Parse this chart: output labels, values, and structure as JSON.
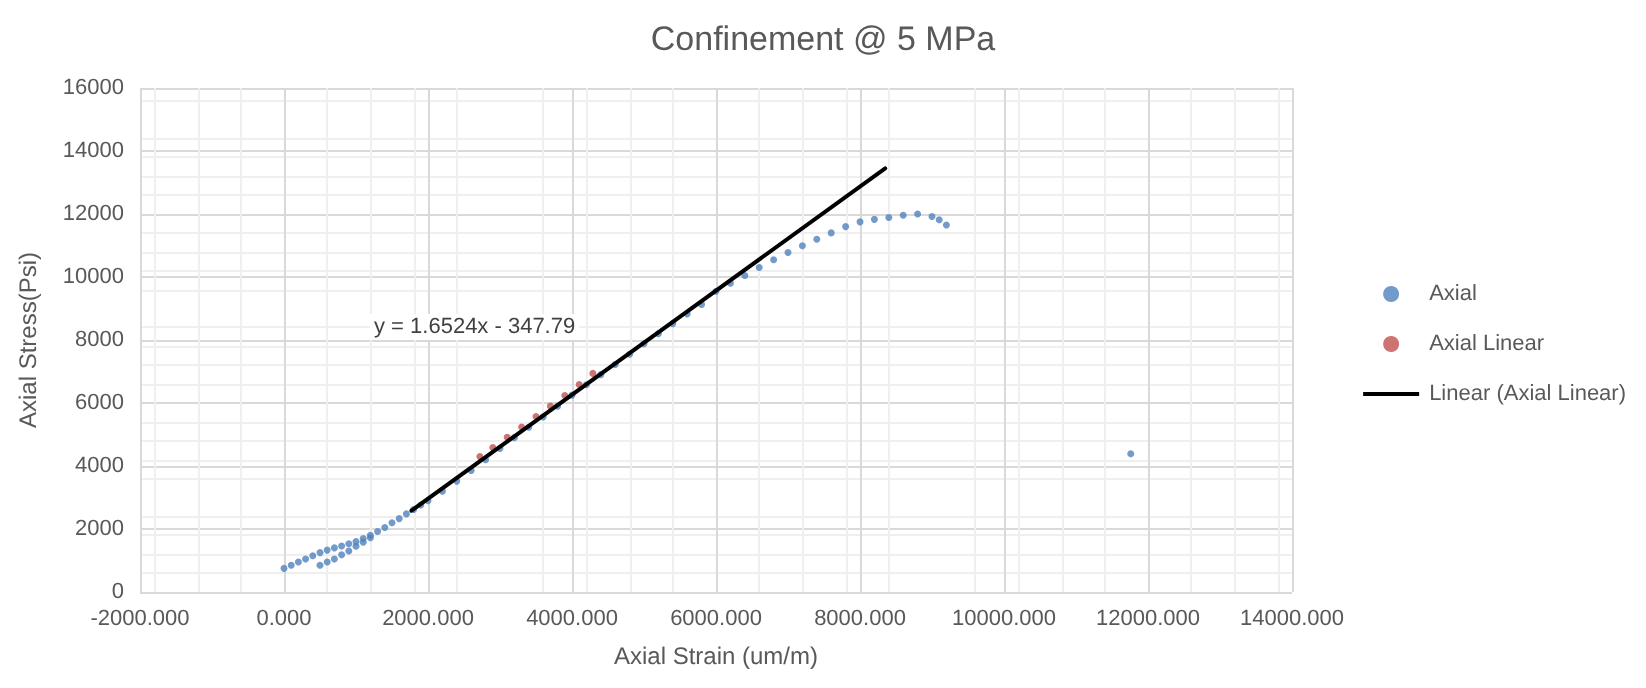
{
  "chart_data": {
    "type": "scatter",
    "title": "Confinement @ 5 MPa",
    "xlabel": "Axial Strain (um/m)",
    "ylabel": "Axial Stress(Psi)",
    "annotations": [
      "y = 1.6524x - 347.79"
    ],
    "series": [
      {
        "name": "Axial",
        "color": "#4f81bd",
        "marker": "circle",
        "x": [
          500,
          600,
          700,
          800,
          900,
          1000,
          1100,
          1200,
          0,
          100,
          200,
          300,
          400,
          500,
          600,
          700,
          800,
          900,
          1000,
          1100,
          1200,
          1300,
          1400,
          1500,
          1600,
          1700,
          1800,
          1900,
          2000,
          2200,
          2400,
          2600,
          2800,
          3000,
          3200,
          3400,
          3600,
          3800,
          4000,
          4200,
          4400,
          4600,
          4800,
          5000,
          5200,
          5400,
          5600,
          5800,
          6000,
          6200,
          6400,
          6600,
          6800,
          7000,
          7200,
          7400,
          7600,
          7800,
          8000,
          8200,
          8400,
          8600,
          8800,
          9000,
          9100,
          9200,
          11760
        ],
        "values": [
          850,
          950,
          1050,
          1180,
          1300,
          1450,
          1580,
          1720,
          750,
          850,
          950,
          1050,
          1150,
          1250,
          1330,
          1400,
          1460,
          1530,
          1600,
          1700,
          1800,
          1920,
          2050,
          2200,
          2330,
          2480,
          2620,
          2760,
          2900,
          3200,
          3520,
          3860,
          4200,
          4560,
          4900,
          5230,
          5560,
          5900,
          6250,
          6580,
          6900,
          7220,
          7550,
          7880,
          8200,
          8520,
          8830,
          9130,
          9550,
          9800,
          10050,
          10300,
          10550,
          10780,
          10990,
          11200,
          11400,
          11600,
          11750,
          11830,
          11890,
          11960,
          12000,
          11920,
          11820,
          11650,
          4390
        ]
      },
      {
        "name": "Axial Linear",
        "color": "#c0504d",
        "marker": "circle",
        "x": [
          2720,
          2900,
          3100,
          3300,
          3500,
          3700,
          3900,
          4100,
          4290
        ],
        "values": [
          4300,
          4590,
          4910,
          5240,
          5570,
          5900,
          6240,
          6590,
          6940
        ]
      },
      {
        "name": "Linear (Axial Linear)",
        "type": "line",
        "color": "#000000",
        "marker": "none",
        "line_style": "solid",
        "x": [
          1770,
          8350
        ],
        "values": [
          2580,
          13450
        ]
      }
    ],
    "xlim": [
      -2000,
      14000
    ],
    "xticks": [
      {
        "value": -2000,
        "label": "-2000.000"
      },
      {
        "value": 0,
        "label": "0.000"
      },
      {
        "value": 2000,
        "label": "2000.000"
      },
      {
        "value": 4000,
        "label": "4000.000"
      },
      {
        "value": 6000,
        "label": "6000.000"
      },
      {
        "value": 8000,
        "label": "8000.000"
      },
      {
        "value": 10000,
        "label": "10000.000"
      },
      {
        "value": 12000,
        "label": "12000.000"
      },
      {
        "value": 14000,
        "label": "14000.000"
      }
    ],
    "ylim": [
      0,
      16000
    ],
    "yticks": [
      0,
      2000,
      4000,
      6000,
      8000,
      10000,
      12000,
      14000,
      16000
    ],
    "grid": true,
    "legend": "right"
  }
}
